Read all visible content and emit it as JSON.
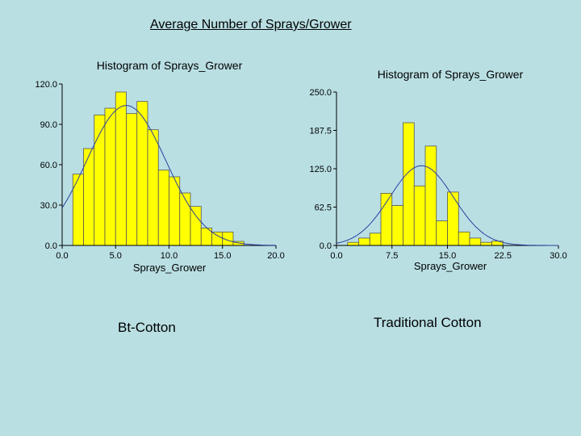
{
  "slide": {
    "title": "Average Number of Sprays/Grower",
    "captions": {
      "left": "Bt-Cotton",
      "right": "Traditional Cotton"
    }
  },
  "colors": {
    "background": "#b9dfe3",
    "bar_fill": "#ffff00",
    "bar_stroke": "#555555",
    "curve": "#2a3f9e",
    "axis": "#000000"
  },
  "chart_data": [
    {
      "type": "bar",
      "title": "Histogram of Sprays_Grower",
      "xlabel": "Sprays_Grower",
      "ylabel": "",
      "xlim": [
        0,
        20
      ],
      "ylim": [
        0,
        120
      ],
      "xticks": [
        "0.0",
        "5.0",
        "10.0",
        "15.0",
        "20.0"
      ],
      "yticks": [
        "0.0",
        "30.0",
        "60.0",
        "90.0",
        "120.0"
      ],
      "bin_width": 1,
      "bins": [
        {
          "x0": 1,
          "x1": 2,
          "value": 53
        },
        {
          "x0": 2,
          "x1": 3,
          "value": 72
        },
        {
          "x0": 3,
          "x1": 4,
          "value": 97
        },
        {
          "x0": 4,
          "x1": 5,
          "value": 102
        },
        {
          "x0": 5,
          "x1": 6,
          "value": 114
        },
        {
          "x0": 6,
          "x1": 7,
          "value": 98
        },
        {
          "x0": 7,
          "x1": 8,
          "value": 107
        },
        {
          "x0": 8,
          "x1": 9,
          "value": 86
        },
        {
          "x0": 9,
          "x1": 10,
          "value": 56
        },
        {
          "x0": 10,
          "x1": 11,
          "value": 51
        },
        {
          "x0": 11,
          "x1": 12,
          "value": 39
        },
        {
          "x0": 12,
          "x1": 13,
          "value": 29
        },
        {
          "x0": 13,
          "x1": 14,
          "value": 13
        },
        {
          "x0": 14,
          "x1": 15,
          "value": 10
        },
        {
          "x0": 15,
          "x1": 16,
          "value": 10
        },
        {
          "x0": 16,
          "x1": 17,
          "value": 3
        }
      ],
      "fitted_curve": {
        "type": "normal",
        "mean": 6.0,
        "sd": 3.7,
        "peak": 104
      }
    },
    {
      "type": "bar",
      "title": "Histogram of Sprays_Grower",
      "xlabel": "Sprays_Grower",
      "ylabel": "",
      "xlim": [
        0,
        30
      ],
      "ylim": [
        0,
        250
      ],
      "xticks": [
        "0.0",
        "7.5",
        "15.0",
        "22.5",
        "30.0"
      ],
      "yticks": [
        "0.0",
        "62.5",
        "125.0",
        "187.5",
        "250.0"
      ],
      "bin_width": 1.5,
      "bins": [
        {
          "x0": 1.5,
          "x1": 3.0,
          "value": 5
        },
        {
          "x0": 3.0,
          "x1": 4.5,
          "value": 12
        },
        {
          "x0": 4.5,
          "x1": 6.0,
          "value": 20
        },
        {
          "x0": 6.0,
          "x1": 7.5,
          "value": 85
        },
        {
          "x0": 7.5,
          "x1": 9.0,
          "value": 65
        },
        {
          "x0": 9.0,
          "x1": 10.5,
          "value": 200
        },
        {
          "x0": 10.5,
          "x1": 12.0,
          "value": 97
        },
        {
          "x0": 12.0,
          "x1": 13.5,
          "value": 162
        },
        {
          "x0": 13.5,
          "x1": 15.0,
          "value": 40
        },
        {
          "x0": 15.0,
          "x1": 16.5,
          "value": 87
        },
        {
          "x0": 16.5,
          "x1": 18.0,
          "value": 22
        },
        {
          "x0": 18.0,
          "x1": 19.5,
          "value": 12
        },
        {
          "x0": 19.5,
          "x1": 21.0,
          "value": 5
        },
        {
          "x0": 21.0,
          "x1": 22.5,
          "value": 7
        }
      ],
      "fitted_curve": {
        "type": "normal",
        "mean": 11.5,
        "sd": 4.3,
        "peak": 130
      }
    }
  ]
}
